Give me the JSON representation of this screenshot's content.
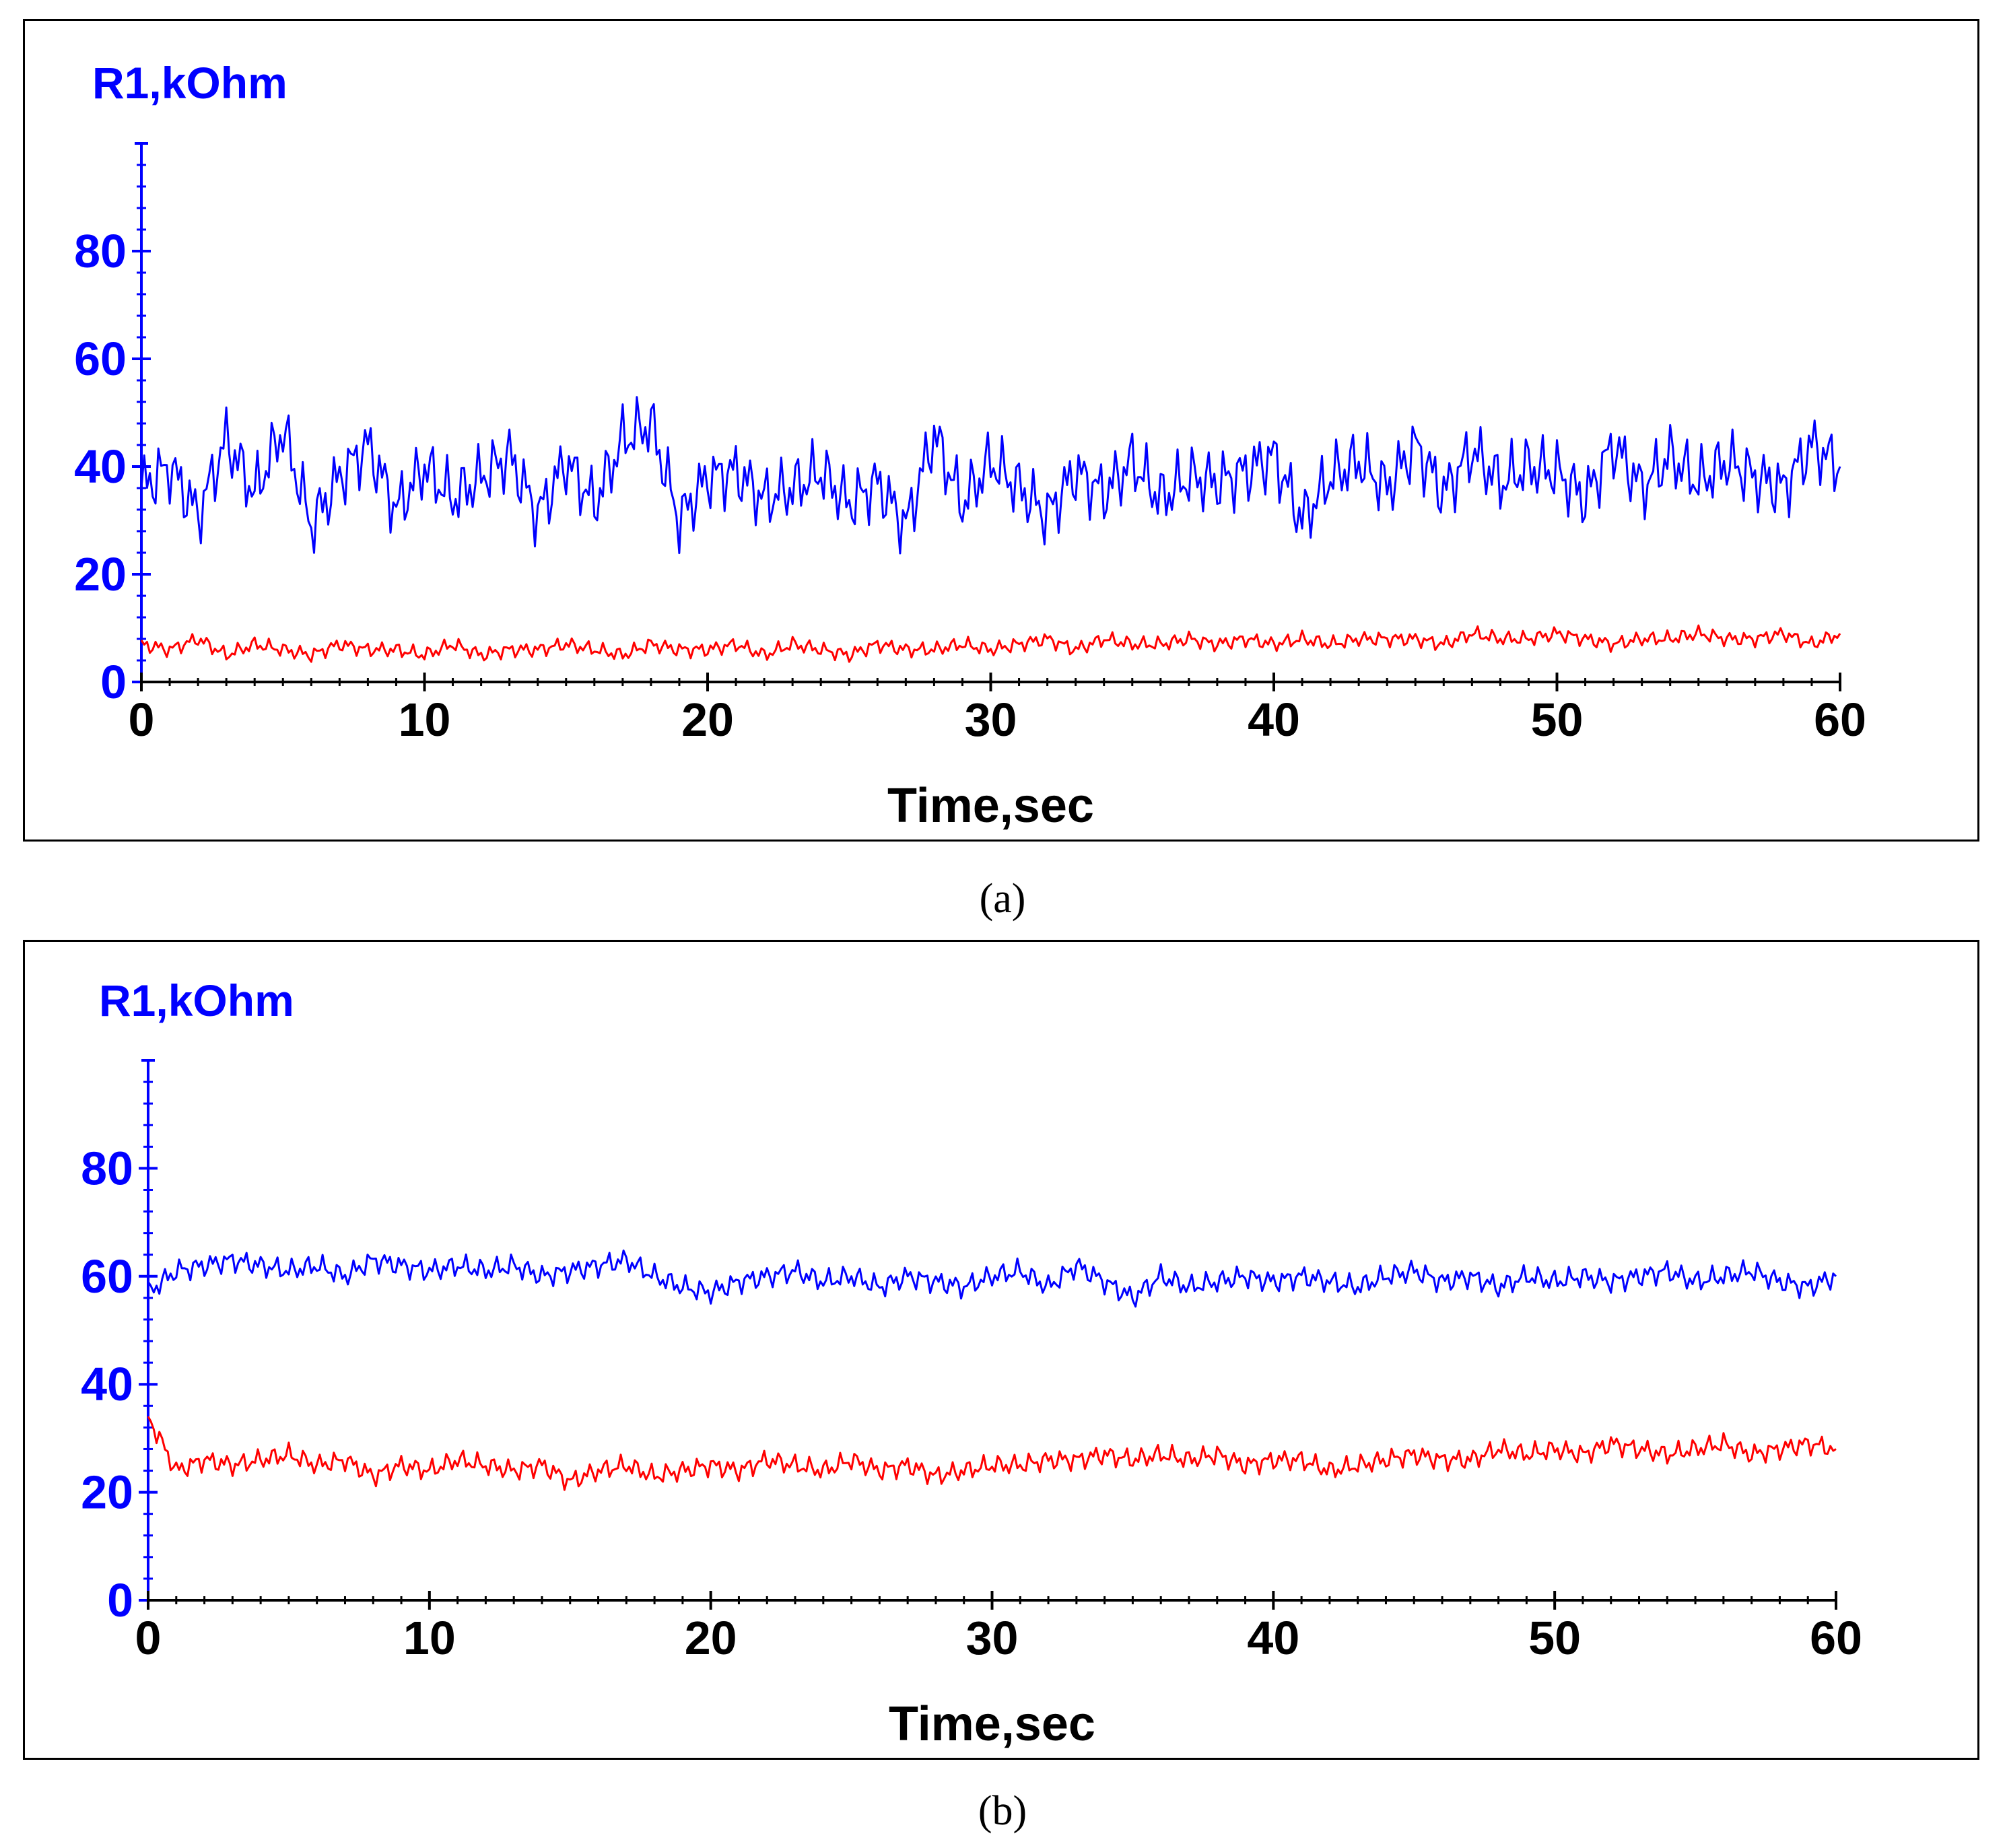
{
  "colors": {
    "blue": "#0000ff",
    "red": "#ff0000",
    "axis_x": "#000000"
  },
  "chart_data": [
    {
      "type": "line",
      "panel_label": "(a)",
      "ylabel": "R1,kOhm",
      "xlabel": "Time,sec",
      "xlim": [
        0,
        60
      ],
      "ylim": [
        0,
        100
      ],
      "x_ticks": [
        "0",
        "10",
        "20",
        "30",
        "40",
        "50",
        "60"
      ],
      "y_ticks": [
        "0",
        "20",
        "40",
        "60",
        "80"
      ],
      "series": [
        {
          "name": "blue",
          "color": "#0000ff",
          "x": [
            0,
            1,
            2,
            3,
            4,
            5,
            6,
            7,
            8,
            9,
            10,
            11,
            12,
            13,
            14,
            15,
            16,
            17,
            18,
            19,
            20,
            21,
            22,
            23,
            24,
            25,
            26,
            27,
            28,
            29,
            30,
            31,
            32,
            33,
            34,
            35,
            36,
            37,
            38,
            39,
            40,
            41,
            42,
            43,
            44,
            45,
            46,
            47,
            48,
            49,
            50,
            51,
            52,
            53,
            54,
            55,
            56,
            57,
            58,
            59,
            60
          ],
          "values": [
            36,
            40,
            31,
            45,
            35,
            47,
            29,
            38,
            44,
            32,
            40,
            34,
            38,
            42,
            31,
            41,
            33,
            45,
            48,
            30,
            38,
            39,
            34,
            36,
            39,
            33,
            37,
            29,
            46,
            33,
            41,
            36,
            31,
            39,
            35,
            41,
            34,
            38,
            37,
            39,
            42,
            30,
            38,
            41,
            36,
            44,
            35,
            43,
            37,
            40,
            39,
            34,
            44,
            36,
            42,
            37,
            41,
            38,
            36,
            44,
            40
          ]
        },
        {
          "name": "red",
          "color": "#ff0000",
          "x": [
            0,
            1,
            2,
            3,
            4,
            5,
            6,
            7,
            8,
            9,
            10,
            11,
            12,
            13,
            14,
            15,
            16,
            17,
            18,
            19,
            20,
            21,
            22,
            23,
            24,
            25,
            26,
            27,
            28,
            29,
            30,
            31,
            32,
            33,
            34,
            35,
            36,
            37,
            38,
            39,
            40,
            41,
            42,
            43,
            44,
            45,
            46,
            47,
            48,
            49,
            50,
            51,
            52,
            53,
            54,
            55,
            56,
            57,
            58,
            59,
            60
          ],
          "values": [
            7,
            6,
            8,
            5,
            7,
            6,
            5,
            7,
            6,
            6,
            5,
            7,
            5,
            6,
            6,
            7,
            6,
            5,
            7,
            6,
            6,
            7,
            5,
            7,
            6,
            5,
            7,
            6,
            6,
            7,
            6,
            7,
            8,
            6,
            8,
            7,
            7,
            8,
            7,
            8,
            7,
            8,
            7,
            8,
            8,
            8,
            7,
            9,
            8,
            8,
            9,
            8,
            7,
            8,
            8,
            9,
            8,
            8,
            9,
            7,
            9
          ]
        }
      ]
    },
    {
      "type": "line",
      "panel_label": "(b)",
      "ylabel": "R1,kOhm",
      "xlabel": "Time,sec",
      "xlim": [
        0,
        60
      ],
      "ylim": [
        0,
        100
      ],
      "x_ticks": [
        "0",
        "10",
        "20",
        "30",
        "40",
        "50",
        "60"
      ],
      "y_ticks": [
        "0",
        "20",
        "40",
        "60",
        "80"
      ],
      "series": [
        {
          "name": "blue",
          "color": "#0000ff",
          "x": [
            0,
            1,
            2,
            3,
            4,
            5,
            6,
            7,
            8,
            9,
            10,
            11,
            12,
            13,
            14,
            15,
            16,
            17,
            18,
            19,
            20,
            21,
            22,
            23,
            24,
            25,
            26,
            27,
            28,
            29,
            30,
            31,
            32,
            33,
            34,
            35,
            36,
            37,
            38,
            39,
            40,
            41,
            42,
            43,
            44,
            45,
            46,
            47,
            48,
            49,
            50,
            51,
            52,
            53,
            54,
            55,
            56,
            57,
            58,
            59,
            60
          ],
          "values": [
            57,
            61,
            62,
            63,
            62,
            61,
            62,
            60,
            63,
            62,
            61,
            62,
            61,
            62,
            60,
            61,
            62,
            63,
            60,
            58,
            57,
            59,
            60,
            61,
            59,
            60,
            58,
            60,
            59,
            58,
            60,
            61,
            58,
            62,
            59,
            56,
            60,
            58,
            59,
            60,
            59,
            60,
            59,
            58,
            60,
            61,
            59,
            60,
            58,
            60,
            59,
            60,
            59,
            60,
            61,
            59,
            60,
            61,
            59,
            58,
            60
          ]
        },
        {
          "name": "red",
          "color": "#ff0000",
          "x": [
            0,
            1,
            2,
            3,
            4,
            5,
            6,
            7,
            8,
            9,
            10,
            11,
            12,
            13,
            14,
            15,
            16,
            17,
            18,
            19,
            20,
            21,
            22,
            23,
            24,
            25,
            26,
            27,
            28,
            29,
            30,
            31,
            32,
            33,
            34,
            35,
            36,
            37,
            38,
            39,
            40,
            41,
            42,
            43,
            44,
            45,
            46,
            47,
            48,
            49,
            50,
            51,
            52,
            53,
            54,
            55,
            56,
            57,
            58,
            59,
            60
          ],
          "values": [
            34,
            24,
            26,
            25,
            26,
            27,
            25,
            26,
            23,
            25,
            24,
            26,
            25,
            24,
            25,
            22,
            24,
            25,
            23,
            24,
            25,
            24,
            26,
            25,
            24,
            26,
            24,
            25,
            23,
            24,
            25,
            25,
            26,
            26,
            27,
            26,
            27,
            26,
            27,
            25,
            26,
            26,
            24,
            25,
            26,
            27,
            26,
            26,
            28,
            27,
            28,
            27,
            29,
            28,
            27,
            28,
            29,
            27,
            28,
            29,
            28
          ]
        }
      ]
    }
  ]
}
